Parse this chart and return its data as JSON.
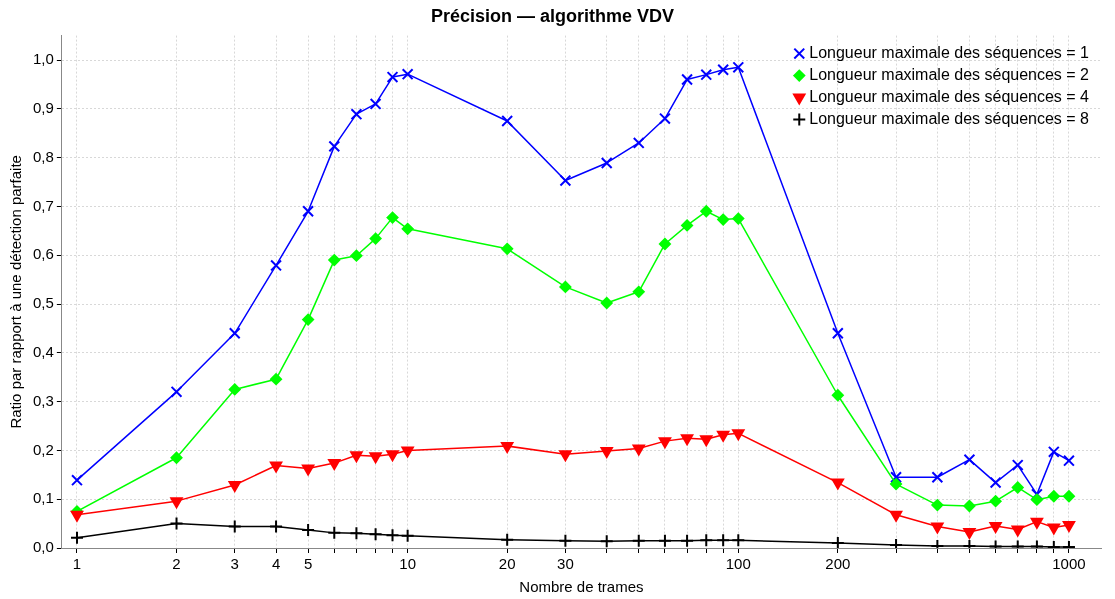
{
  "chart_data": {
    "type": "line",
    "title": "Précision — algorithme VDV",
    "xlabel": "Nombre de trames",
    "ylabel": "Ratio par rapport à une détection parfaite",
    "x": [
      1,
      2,
      3,
      4,
      5,
      6,
      7,
      8,
      9,
      10,
      20,
      30,
      40,
      50,
      60,
      70,
      80,
      90,
      100,
      200,
      300,
      400,
      500,
      600,
      700,
      800,
      900,
      1000
    ],
    "series": [
      {
        "name": "Longueur maximale des séquences = 1",
        "color": "#0000ff",
        "marker": "cross",
        "values": [
          0.139,
          0.32,
          0.44,
          0.579,
          0.69,
          0.823,
          0.889,
          0.91,
          0.965,
          0.971,
          0.875,
          0.753,
          0.789,
          0.83,
          0.88,
          0.96,
          0.97,
          0.98,
          0.985,
          0.44,
          0.145,
          0.145,
          0.181,
          0.134,
          0.17,
          0.11,
          0.197,
          0.179
        ]
      },
      {
        "name": "Longueur maximale des séquences = 2",
        "color": "#00ff00",
        "marker": "diamond",
        "values": [
          0.075,
          0.185,
          0.325,
          0.346,
          0.468,
          0.59,
          0.599,
          0.634,
          0.677,
          0.654,
          0.613,
          0.535,
          0.502,
          0.525,
          0.623,
          0.661,
          0.69,
          0.673,
          0.675,
          0.313,
          0.131,
          0.088,
          0.086,
          0.096,
          0.124,
          0.099,
          0.106,
          0.106
        ]
      },
      {
        "name": "Longueur maximale des séquences = 4",
        "color": "#ff0000",
        "marker": "triangle",
        "values": [
          0.068,
          0.096,
          0.129,
          0.169,
          0.163,
          0.174,
          0.19,
          0.188,
          0.192,
          0.2,
          0.209,
          0.192,
          0.199,
          0.204,
          0.219,
          0.225,
          0.223,
          0.232,
          0.235,
          0.134,
          0.068,
          0.044,
          0.033,
          0.045,
          0.038,
          0.054,
          0.042,
          0.047
        ]
      },
      {
        "name": "Longueur maximale des séquences = 8",
        "color": "#000000",
        "marker": "plus",
        "values": [
          0.021,
          0.05,
          0.044,
          0.044,
          0.037,
          0.031,
          0.03,
          0.028,
          0.026,
          0.025,
          0.017,
          0.015,
          0.014,
          0.015,
          0.015,
          0.015,
          0.016,
          0.016,
          0.016,
          0.01,
          0.006,
          0.004,
          0.004,
          0.003,
          0.003,
          0.003,
          0.002,
          0.002
        ]
      }
    ],
    "log": "x",
    "xlim": [
      0.9,
      1250
    ],
    "ylim": [
      0,
      1.05
    ],
    "xticks": [
      1,
      2,
      3,
      4,
      5,
      {
        "value": 6,
        "label": null
      },
      {
        "value": 7,
        "label": null
      },
      {
        "value": 8,
        "label": null
      },
      {
        "value": 9,
        "label": null
      },
      10,
      20,
      30,
      {
        "value": 40,
        "label": null
      },
      {
        "value": 50,
        "label": null
      },
      {
        "value": 60,
        "label": null
      },
      {
        "value": 70,
        "label": null
      },
      {
        "value": 80,
        "label": null
      },
      {
        "value": 90,
        "label": null
      },
      100,
      200,
      {
        "value": 300,
        "label": null
      },
      {
        "value": 400,
        "label": null
      },
      {
        "value": 500,
        "label": null
      },
      {
        "value": 600,
        "label": null
      },
      {
        "value": 700,
        "label": null
      },
      {
        "value": 800,
        "label": null
      },
      {
        "value": 900,
        "label": null
      },
      1000
    ],
    "yticks": [
      {
        "value": 0,
        "label": "0,0"
      },
      {
        "value": 0.1,
        "label": "0,1"
      },
      {
        "value": 0.2,
        "label": "0,2"
      },
      {
        "value": 0.3,
        "label": "0,3"
      },
      {
        "value": 0.4,
        "label": "0,4"
      },
      {
        "value": 0.5,
        "label": "0,5"
      },
      {
        "value": 0.6,
        "label": "0,6"
      },
      {
        "value": 0.7,
        "label": "0,7"
      },
      {
        "value": 0.8,
        "label": "0,8"
      },
      {
        "value": 0.9,
        "label": "0,9"
      },
      {
        "value": 1,
        "label": "1,0"
      }
    ],
    "grid": true,
    "legend": "top right",
    "line_style": "solid"
  }
}
